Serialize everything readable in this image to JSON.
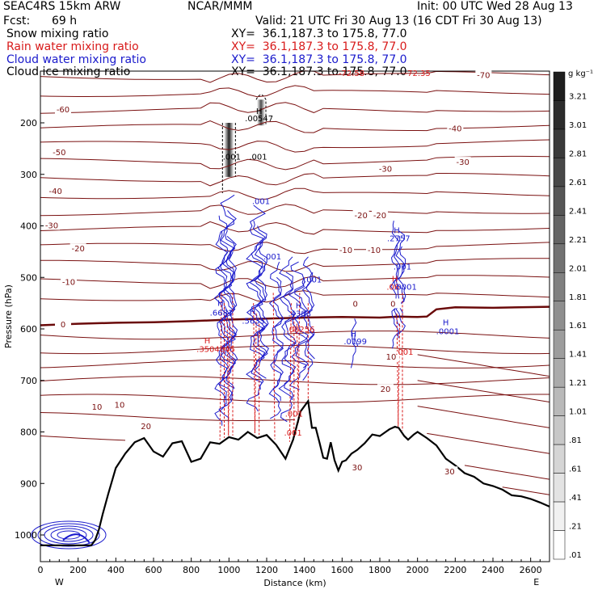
{
  "header": {
    "model": "SEAC4RS 15km ARW",
    "center": "NCAR/MMM",
    "init": "Init: 00 UTC Wed 28 Aug 13",
    "fcst_label": "Fcst:",
    "fcst_value": "69 h",
    "valid": "Valid: 21 UTC Fri 30 Aug 13 (16 CDT Fri 30 Aug 13)"
  },
  "fields": [
    {
      "name": "Snow mixing ratio",
      "xy": "XY=  36.1,187.3 to 175.8, 77.0",
      "color": "#000000"
    },
    {
      "name": "Rain water mixing ratio",
      "xy": "XY=  36.1,187.3 to 175.8, 77.0",
      "color": "#d81a1a"
    },
    {
      "name": "Cloud water mixing ratio",
      "xy": "XY=  36.1,187.3 to 175.8, 77.0",
      "color": "#1a1acc"
    },
    {
      "name": "Cloud ice mixing ratio",
      "xy": "XY=  36.1,187.3 to 175.8, 77.0",
      "color": "#000000"
    }
  ],
  "chart_data": {
    "type": "cross-section",
    "xlabel": "Distance (km)",
    "ylabel": "Pressure (hPa)",
    "xlim": [
      0,
      2700
    ],
    "ylim": [
      1050,
      100
    ],
    "x_ticks": [
      "0",
      "200",
      "400",
      "600",
      "800",
      "1000",
      "1200",
      "1400",
      "1600",
      "1800",
      "2000",
      "2200",
      "2400",
      "2600"
    ],
    "y_ticks": [
      "200",
      "300",
      "400",
      "500",
      "600",
      "700",
      "800",
      "900",
      "1000"
    ],
    "x_end_labels": {
      "left": "W",
      "right": "E"
    },
    "colorbar": {
      "unit": "g kg⁻¹",
      "labels": [
        "3.21",
        "3.01",
        "2.81",
        "2.61",
        "2.41",
        "2.21",
        "2.01",
        "1.81",
        "1.61",
        "1.41",
        "1.21",
        "1.01",
        ".81",
        ".61",
        ".41",
        ".21",
        ".01"
      ]
    },
    "isotherm_labels": [
      {
        "text": "-60",
        "x": 120,
        "p": 175
      },
      {
        "text": "-50",
        "x": 100,
        "p": 258
      },
      {
        "text": "-40",
        "x": 80,
        "p": 333
      },
      {
        "text": "-30",
        "x": 60,
        "p": 400
      },
      {
        "text": "-20",
        "x": 200,
        "p": 445
      },
      {
        "text": "-10",
        "x": 150,
        "p": 510
      },
      {
        "text": "0",
        "x": 120,
        "p": 592
      },
      {
        "text": "10",
        "x": 300,
        "p": 752
      },
      {
        "text": "10",
        "x": 420,
        "p": 748
      },
      {
        "text": "20",
        "x": 560,
        "p": 790
      },
      {
        "text": "-70",
        "x": 2350,
        "p": 108
      },
      {
        "text": "-40",
        "x": 2200,
        "p": 212
      },
      {
        "text": "-30",
        "x": 2240,
        "p": 277
      },
      {
        "text": "-30",
        "x": 1830,
        "p": 290
      },
      {
        "text": "-20",
        "x": 1700,
        "p": 380
      },
      {
        "text": "-20",
        "x": 1800,
        "p": 380
      },
      {
        "text": "-10",
        "x": 1620,
        "p": 448
      },
      {
        "text": "-10",
        "x": 1770,
        "p": 448
      },
      {
        "text": "0",
        "x": 1670,
        "p": 552
      },
      {
        "text": "0",
        "x": 1870,
        "p": 552
      },
      {
        "text": "10",
        "x": 1860,
        "p": 655
      },
      {
        "text": "20",
        "x": 1830,
        "p": 718
      },
      {
        "text": "30",
        "x": 1680,
        "p": 870
      },
      {
        "text": "30",
        "x": 2170,
        "p": 878
      }
    ],
    "annotations": [
      {
        "text": "-72.58",
        "x": 1650,
        "p": 109,
        "color": "#d81a1a"
      },
      {
        "text": "-72.35",
        "x": 2000,
        "p": 109,
        "color": "#d81a1a"
      },
      {
        "text": "H",
        "x": 1160,
        "p": 183,
        "color": "#000000"
      },
      {
        "text": ".00547",
        "x": 1160,
        "p": 197,
        "color": "#000000"
      },
      {
        "text": ".001",
        "x": 1015,
        "p": 271,
        "color": "#000000"
      },
      {
        "text": ".001",
        "x": 1155,
        "p": 271,
        "color": "#000000"
      },
      {
        "text": ".001",
        "x": 1170,
        "p": 358,
        "color": "#1a1acc"
      },
      {
        "text": ".001",
        "x": 1230,
        "p": 465,
        "color": "#1a1acc"
      },
      {
        "text": ".001",
        "x": 1445,
        "p": 510,
        "color": "#1a1acc"
      },
      {
        "text": "H",
        "x": 1890,
        "p": 414,
        "color": "#1a1acc"
      },
      {
        "text": ".2757",
        "x": 1900,
        "p": 430,
        "color": "#1a1acc"
      },
      {
        "text": ".001",
        "x": 1920,
        "p": 485,
        "color": "#1a1acc"
      },
      {
        "text": "H",
        "x": 1880,
        "p": 508,
        "color": "#d81a1a"
      },
      {
        "text": ".06",
        "x": 1870,
        "p": 524,
        "color": "#d81a1a"
      },
      {
        "text": ".0001",
        "x": 1935,
        "p": 524,
        "color": "#1a1acc"
      },
      {
        "text": "H",
        "x": 955,
        "p": 555,
        "color": "#1a1acc"
      },
      {
        "text": ".6681",
        "x": 960,
        "p": 574,
        "color": "#1a1acc"
      },
      {
        "text": "H",
        "x": 1125,
        "p": 572,
        "color": "#1a1acc"
      },
      {
        "text": ".5635",
        "x": 1130,
        "p": 590,
        "color": "#1a1acc"
      },
      {
        "text": "H",
        "x": 1370,
        "p": 560,
        "color": "#1a1acc"
      },
      {
        "text": ".4383",
        "x": 1375,
        "p": 576,
        "color": "#1a1acc"
      },
      {
        "text": ".00256",
        "x": 1380,
        "p": 606,
        "color": "#d81a1a"
      },
      {
        "text": "H",
        "x": 885,
        "p": 628,
        "color": "#d81a1a"
      },
      {
        "text": ".3504845",
        "x": 930,
        "p": 645,
        "color": "#d81a1a"
      },
      {
        "text": "H",
        "x": 1660,
        "p": 615,
        "color": "#1a1acc"
      },
      {
        "text": ".0199",
        "x": 1670,
        "p": 630,
        "color": "#1a1acc"
      },
      {
        "text": "H",
        "x": 2150,
        "p": 593,
        "color": "#1a1acc"
      },
      {
        "text": ".0001",
        "x": 2160,
        "p": 610,
        "color": "#1a1acc"
      },
      {
        "text": ".001",
        "x": 1930,
        "p": 650,
        "color": "#d81a1a"
      },
      {
        "text": ".001",
        "x": 1345,
        "p": 770,
        "color": "#d81a1a"
      },
      {
        "text": ".001",
        "x": 1340,
        "p": 807,
        "color": "#d81a1a"
      }
    ],
    "terrain": {
      "x": [
        0,
        270,
        290,
        310,
        330,
        360,
        400,
        450,
        500,
        550,
        600,
        650,
        700,
        750,
        800,
        850,
        900,
        950,
        1000,
        1050,
        1100,
        1150,
        1200,
        1250,
        1300,
        1340,
        1380,
        1420,
        1440,
        1460,
        1480,
        1500,
        1520,
        1540,
        1560,
        1580,
        1600,
        1620,
        1650,
        1680,
        1720,
        1760,
        1800,
        1850,
        1880,
        1900,
        1930,
        1950,
        1980,
        2000,
        2050,
        2100,
        2150,
        2200,
        2250,
        2300,
        2350,
        2400,
        2450,
        2500,
        2550,
        2600,
        2650,
        2700
      ],
      "p": [
        1020,
        1020,
        1010,
        990,
        960,
        920,
        870,
        842,
        820,
        812,
        838,
        848,
        822,
        818,
        858,
        852,
        820,
        823,
        810,
        815,
        800,
        812,
        806,
        825,
        852,
        815,
        760,
        740,
        792,
        792,
        820,
        850,
        852,
        820,
        855,
        875,
        858,
        855,
        842,
        835,
        822,
        805,
        808,
        795,
        790,
        792,
        808,
        815,
        805,
        800,
        812,
        826,
        852,
        865,
        880,
        887,
        900,
        905,
        912,
        923,
        925,
        930,
        937,
        945
      ]
    },
    "freezing_level": {
      "x": [
        0,
        200,
        400,
        600,
        800,
        1000,
        1200,
        1400,
        1600,
        1800,
        1900,
        2000,
        2050,
        2100,
        2200,
        2400,
        2700
      ],
      "p": [
        593,
        590,
        588,
        587,
        585,
        582,
        580,
        578,
        577,
        578,
        576,
        577,
        576,
        562,
        558,
        559,
        557
      ]
    },
    "rain_columns_x": [
      960,
      975,
      990,
      1005,
      1020,
      1130,
      1145,
      1160,
      1235,
      1330,
      1345,
      1360,
      1375,
      1420,
      1890,
      1905,
      1920
    ],
    "snow_column": {
      "x": 1000,
      "p_top": 200,
      "p_bot": 305
    },
    "ice_column": {
      "x": 1170,
      "p_top": 155,
      "p_bot": 205
    }
  }
}
